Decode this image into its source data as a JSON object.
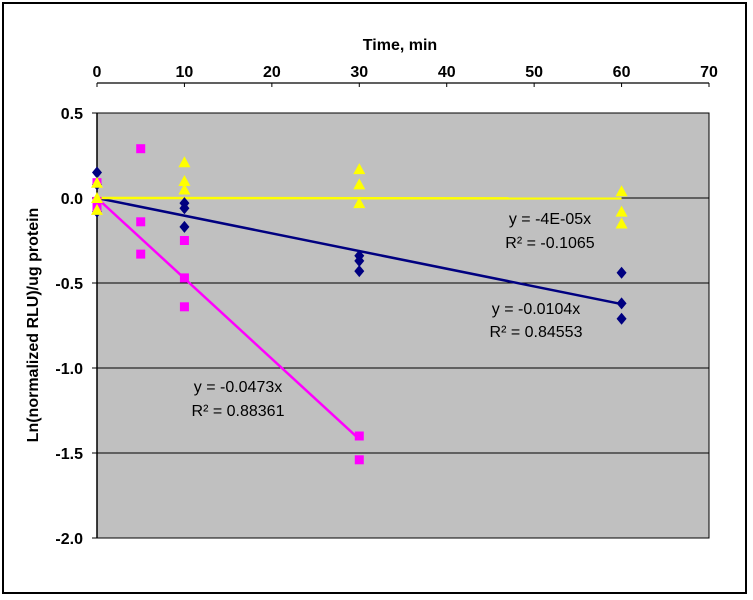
{
  "chart_data": {
    "type": "scatter",
    "title": "",
    "xlabel": "Time, min",
    "ylabel": "Ln(normalized RLU)/ug protein",
    "xlim": [
      0,
      70
    ],
    "ylim": [
      -2.0,
      0.5
    ],
    "x_ticks": [
      0,
      10,
      20,
      30,
      40,
      50,
      60,
      70
    ],
    "x_tick_labels": [
      "0",
      "10",
      "20",
      "30",
      "40",
      "50",
      "60",
      "70"
    ],
    "y_ticks": [
      0.5,
      0.0,
      -0.5,
      -1.0,
      -1.5,
      -2.0
    ],
    "y_tick_labels": [
      "0.5",
      "0.0",
      "-0.5",
      "-1.0",
      "-1.5",
      "-2.0"
    ],
    "x_axis_position": "top",
    "grid": "horizontal",
    "plot_background": "#c0c0c0",
    "legend": "none",
    "series": [
      {
        "color": "#000080",
        "marker": "diamond",
        "points": [
          [
            0,
            0.15
          ],
          [
            0,
            0.08
          ],
          [
            0,
            -0.02
          ],
          [
            0,
            -0.08
          ],
          [
            10,
            -0.03
          ],
          [
            10,
            -0.06
          ],
          [
            10,
            -0.17
          ],
          [
            30,
            -0.34
          ],
          [
            30,
            -0.37
          ],
          [
            30,
            -0.43
          ],
          [
            60,
            -0.44
          ],
          [
            60,
            -0.62
          ],
          [
            60,
            -0.71
          ]
        ],
        "trendline": {
          "slope": -0.0104,
          "x_end": 60,
          "equation": "y = -0.0104x",
          "r2": "R² = 0.84553"
        }
      },
      {
        "color": "#ff00ff",
        "marker": "square",
        "points": [
          [
            0,
            0.09
          ],
          [
            0,
            -0.02
          ],
          [
            0,
            -0.07
          ],
          [
            5,
            0.29
          ],
          [
            5,
            -0.14
          ],
          [
            5,
            -0.33
          ],
          [
            10,
            -0.25
          ],
          [
            10,
            -0.47
          ],
          [
            10,
            -0.64
          ],
          [
            30,
            -1.4
          ],
          [
            30,
            -1.54
          ]
        ],
        "trendline": {
          "slope": -0.0473,
          "x_end": 30,
          "equation": "y = -0.0473x",
          "r2": "R² = 0.88361"
        }
      },
      {
        "color": "#ffff00",
        "marker": "triangle",
        "points": [
          [
            0,
            0.09
          ],
          [
            0,
            0.0
          ],
          [
            0,
            -0.07
          ],
          [
            10,
            0.21
          ],
          [
            10,
            0.1
          ],
          [
            10,
            0.05
          ],
          [
            30,
            0.17
          ],
          [
            30,
            0.08
          ],
          [
            30,
            -0.03
          ],
          [
            60,
            0.04
          ],
          [
            60,
            -0.08
          ],
          [
            60,
            -0.15
          ]
        ],
        "trendline": {
          "slope": -4e-05,
          "x_end": 60,
          "equation": "y = -4E-05x",
          "r2": "R² = -0.1065"
        }
      }
    ]
  }
}
